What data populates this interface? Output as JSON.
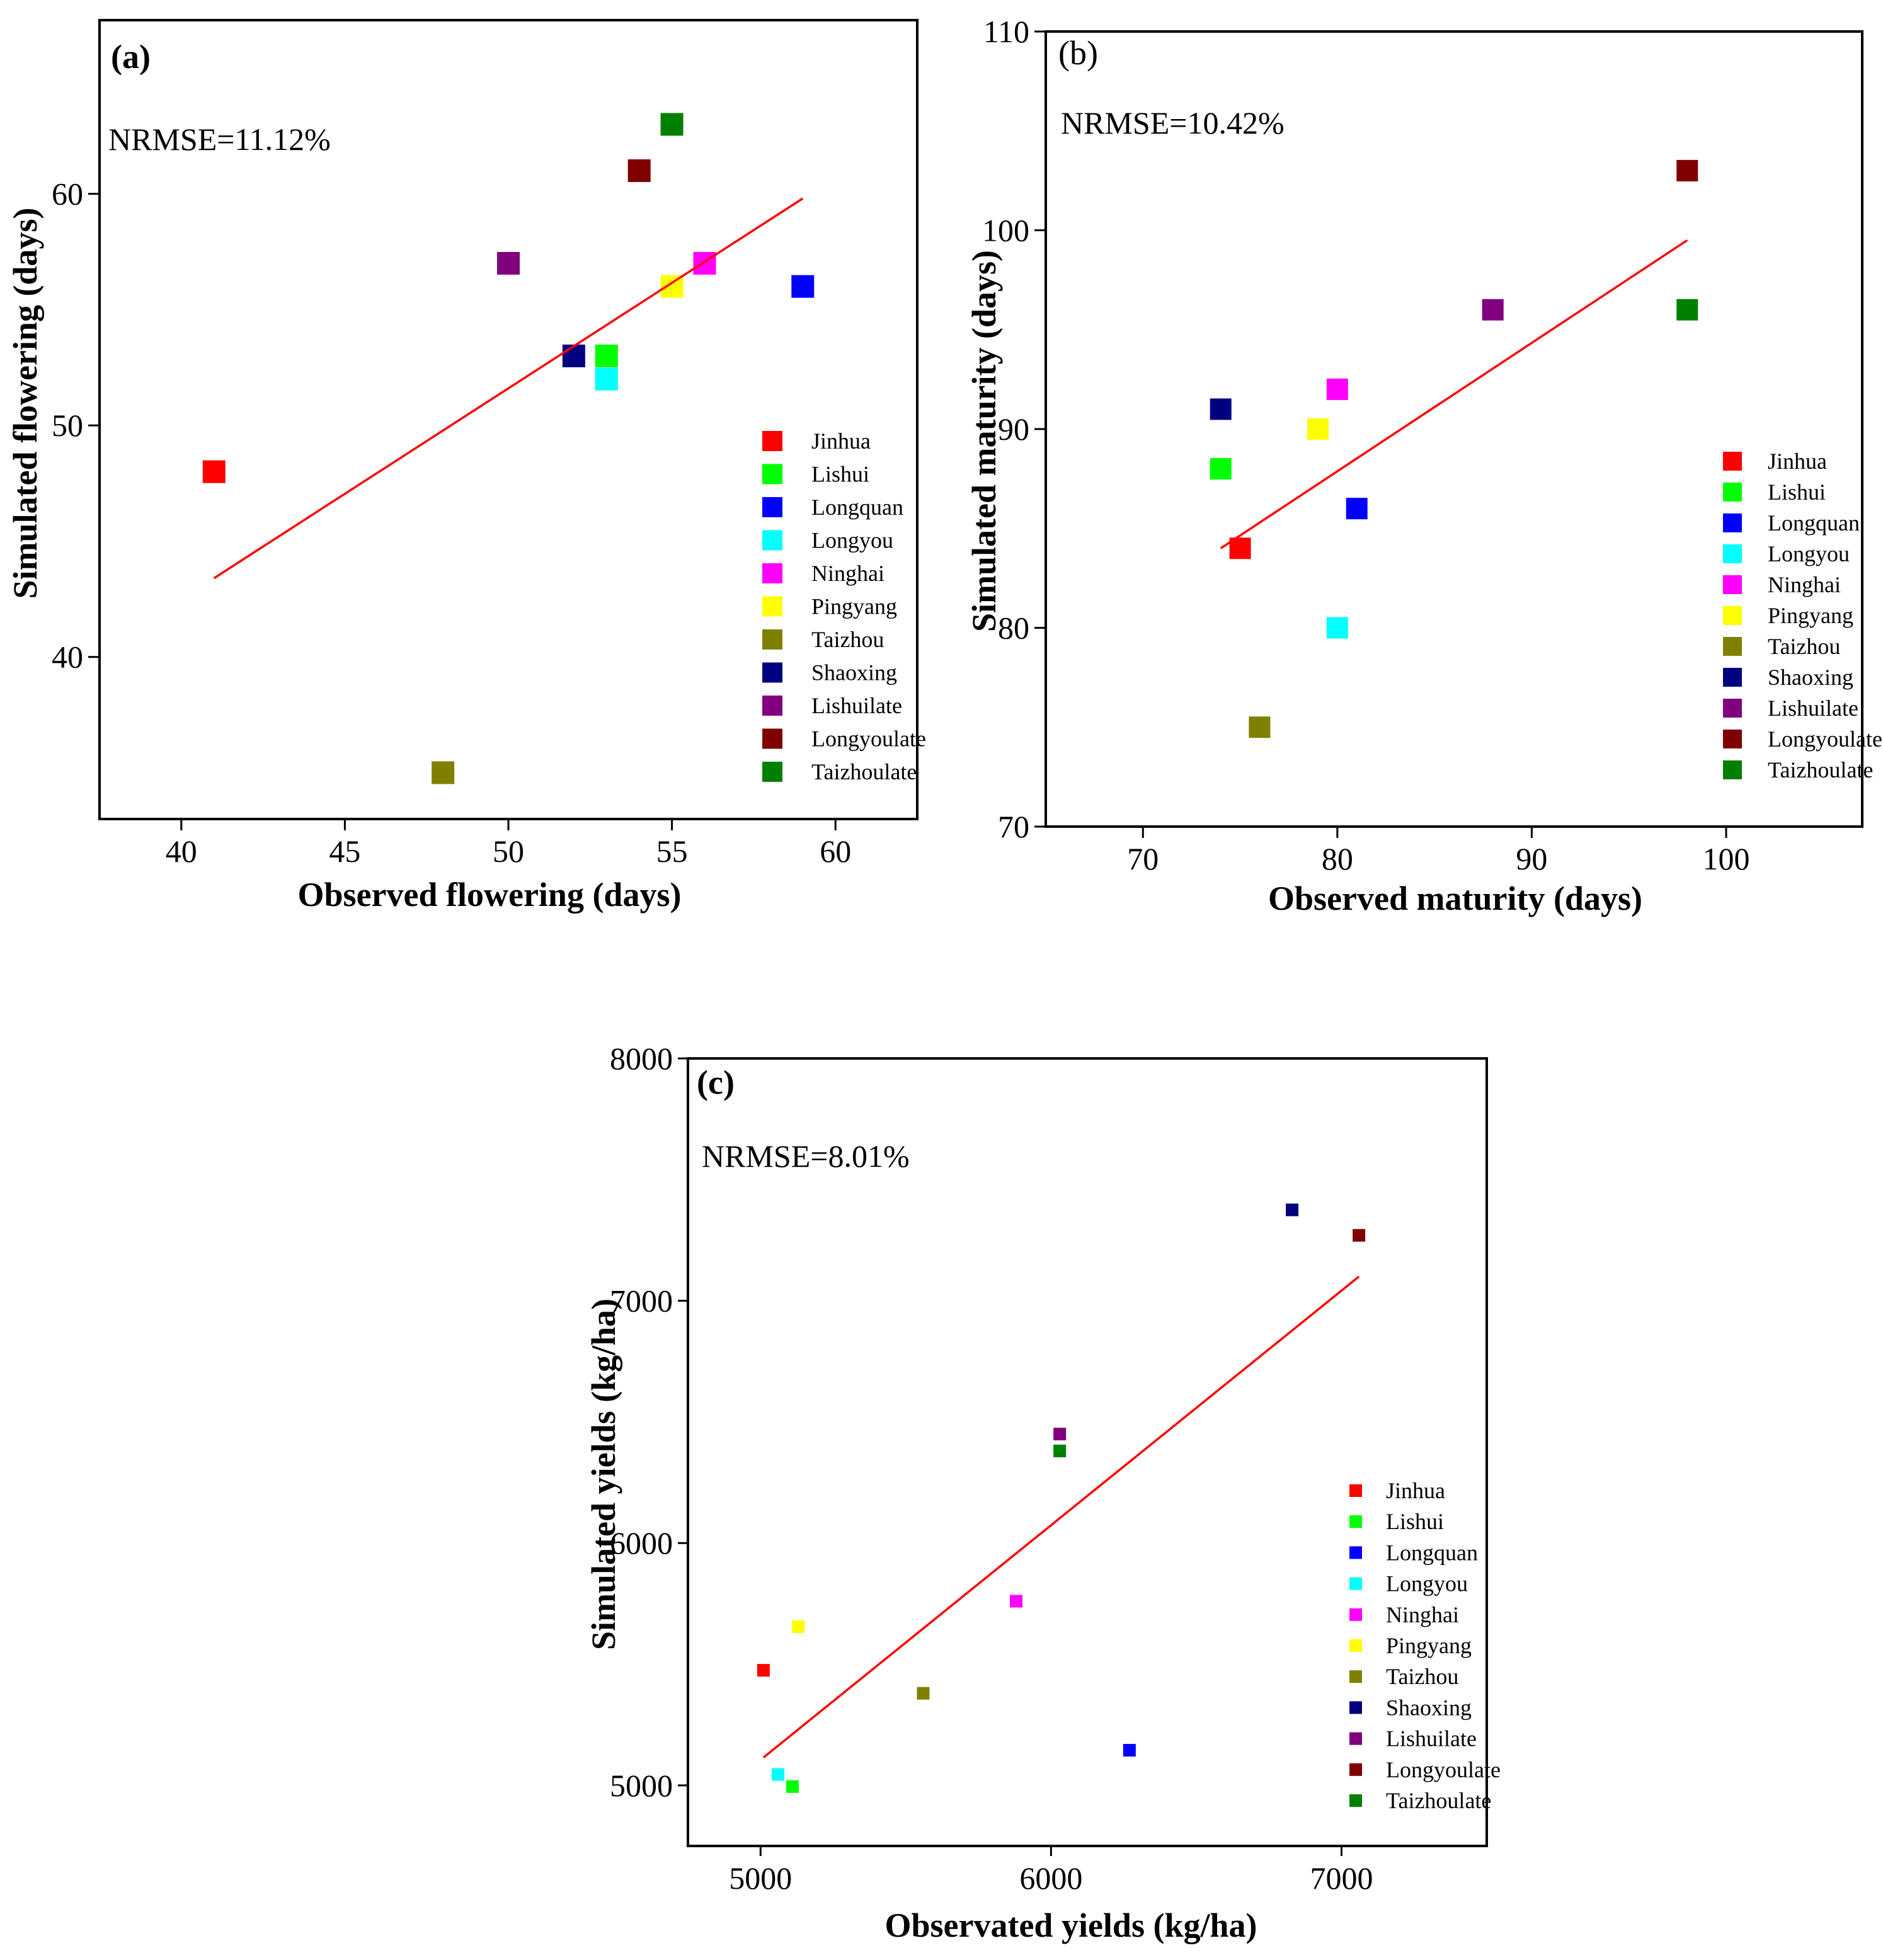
{
  "chart_data": [
    {
      "type": "scatter",
      "panel_label": "(a)",
      "annotation": "NRMSE=11.12%",
      "xlabel": "Observed flowering (days)",
      "ylabel": "Simulated flowering (days)",
      "xlim": [
        37.5,
        62.5
      ],
      "ylim": [
        33,
        67.5
      ],
      "xticks": [
        40,
        45,
        50,
        55,
        60
      ],
      "yticks": [
        40,
        50,
        60
      ],
      "legend_position": "bottom-right",
      "points": [
        {
          "name": "Jinhua",
          "x": 41,
          "y": 48,
          "color": "#ff0000"
        },
        {
          "name": "Lishui",
          "x": 53,
          "y": 53,
          "color": "#00ff00"
        },
        {
          "name": "Longquan",
          "x": 59,
          "y": 56,
          "color": "#0000ff"
        },
        {
          "name": "Longyou",
          "x": 53,
          "y": 52,
          "color": "#00ffff"
        },
        {
          "name": "Ninghai",
          "x": 56,
          "y": 57,
          "color": "#ff00ff"
        },
        {
          "name": "Pingyang",
          "x": 55,
          "y": 56,
          "color": "#ffff00"
        },
        {
          "name": "Taizhou",
          "x": 48,
          "y": 35,
          "color": "#808000"
        },
        {
          "name": "Shaoxing",
          "x": 52,
          "y": 53,
          "color": "#000080"
        },
        {
          "name": "Lishuilate",
          "x": 50,
          "y": 57,
          "color": "#800080"
        },
        {
          "name": "Longyoulate",
          "x": 54,
          "y": 61,
          "color": "#800000"
        },
        {
          "name": "Taizhoulate",
          "x": 55,
          "y": 63,
          "color": "#008000"
        }
      ],
      "fit_line": {
        "x": [
          41,
          59
        ],
        "y": [
          43.4,
          59.8
        ],
        "color": "#ff0000"
      }
    },
    {
      "type": "scatter",
      "panel_label": "(b)",
      "annotation": "NRMSE=10.42%",
      "xlabel": "Observed maturity (days)",
      "ylabel": "Simulated maturity (days)",
      "xlim": [
        65,
        107
      ],
      "ylim": [
        70,
        110
      ],
      "xticks": [
        70,
        80,
        90,
        100
      ],
      "yticks": [
        70,
        80,
        90,
        100,
        110
      ],
      "legend_position": "bottom-right",
      "points": [
        {
          "name": "Jinhua",
          "x": 75,
          "y": 84,
          "color": "#ff0000"
        },
        {
          "name": "Lishui",
          "x": 74,
          "y": 88,
          "color": "#00ff00"
        },
        {
          "name": "Longquan",
          "x": 81,
          "y": 86,
          "color": "#0000ff"
        },
        {
          "name": "Longyou",
          "x": 80,
          "y": 80,
          "color": "#00ffff"
        },
        {
          "name": "Ninghai",
          "x": 80,
          "y": 92,
          "color": "#ff00ff"
        },
        {
          "name": "Pingyang",
          "x": 79,
          "y": 90,
          "color": "#ffff00"
        },
        {
          "name": "Taizhou",
          "x": 76,
          "y": 75,
          "color": "#808000"
        },
        {
          "name": "Shaoxing",
          "x": 74,
          "y": 91,
          "color": "#000080"
        },
        {
          "name": "Lishuilate",
          "x": 88,
          "y": 96,
          "color": "#800080"
        },
        {
          "name": "Longyoulate",
          "x": 98,
          "y": 103,
          "color": "#800000"
        },
        {
          "name": "Taizhoulate",
          "x": 98,
          "y": 96,
          "color": "#008000"
        }
      ],
      "fit_line": {
        "x": [
          74,
          98
        ],
        "y": [
          84,
          99.5
        ],
        "color": "#ff0000"
      }
    },
    {
      "type": "scatter",
      "panel_label": "(c)",
      "annotation": "NRMSE=8.01%",
      "xlabel": "Observated yields (kg/ha)",
      "ylabel": "Simulated yields (kg/ha)",
      "xlim": [
        4750,
        7500
      ],
      "ylim": [
        4750,
        8000
      ],
      "xticks": [
        5000,
        6000,
        7000
      ],
      "yticks": [
        5000,
        6000,
        7000,
        8000
      ],
      "legend_position": "bottom-right",
      "points": [
        {
          "name": "Jinhua",
          "x": 5010,
          "y": 5475,
          "color": "#ff0000"
        },
        {
          "name": "Lishui",
          "x": 5110,
          "y": 4995,
          "color": "#00ff00"
        },
        {
          "name": "Longquan",
          "x": 6270,
          "y": 5145,
          "color": "#0000ff"
        },
        {
          "name": "Longyou",
          "x": 5060,
          "y": 5045,
          "color": "#00ffff"
        },
        {
          "name": "Ninghai",
          "x": 5880,
          "y": 5760,
          "color": "#ff00ff"
        },
        {
          "name": "Pingyang",
          "x": 5130,
          "y": 5655,
          "color": "#ffff00"
        },
        {
          "name": "Taizhou",
          "x": 5560,
          "y": 5380,
          "color": "#808000"
        },
        {
          "name": "Shaoxing",
          "x": 6830,
          "y": 7375,
          "color": "#000080"
        },
        {
          "name": "Lishuilate",
          "x": 6030,
          "y": 6450,
          "color": "#800080"
        },
        {
          "name": "Longyoulate",
          "x": 7060,
          "y": 7270,
          "color": "#800000"
        },
        {
          "name": "Taizhoulate",
          "x": 6030,
          "y": 6380,
          "color": "#008000"
        }
      ],
      "fit_line": {
        "x": [
          5010,
          7060
        ],
        "y": [
          5115,
          7100
        ],
        "color": "#ff0000"
      }
    }
  ]
}
